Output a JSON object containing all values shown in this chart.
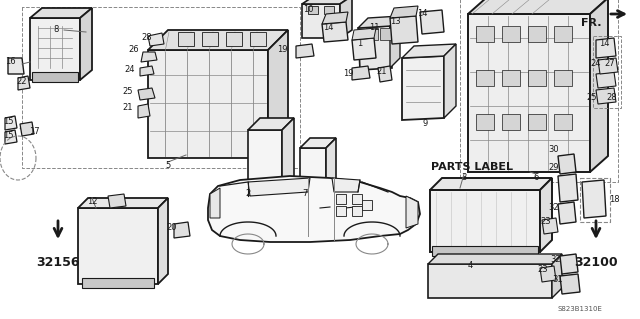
{
  "bg_color": "#ffffff",
  "fig_width": 6.4,
  "fig_height": 3.19,
  "dpi": 100,
  "line_color": "#1a1a1a",
  "gray": "#888888",
  "light_gray": "#cccccc",
  "fr_text": "FR.",
  "parts_label_text": "PARTS LABEL",
  "code_text": "S823B1310E",
  "label_32156": "32156",
  "label_32100": "32100"
}
